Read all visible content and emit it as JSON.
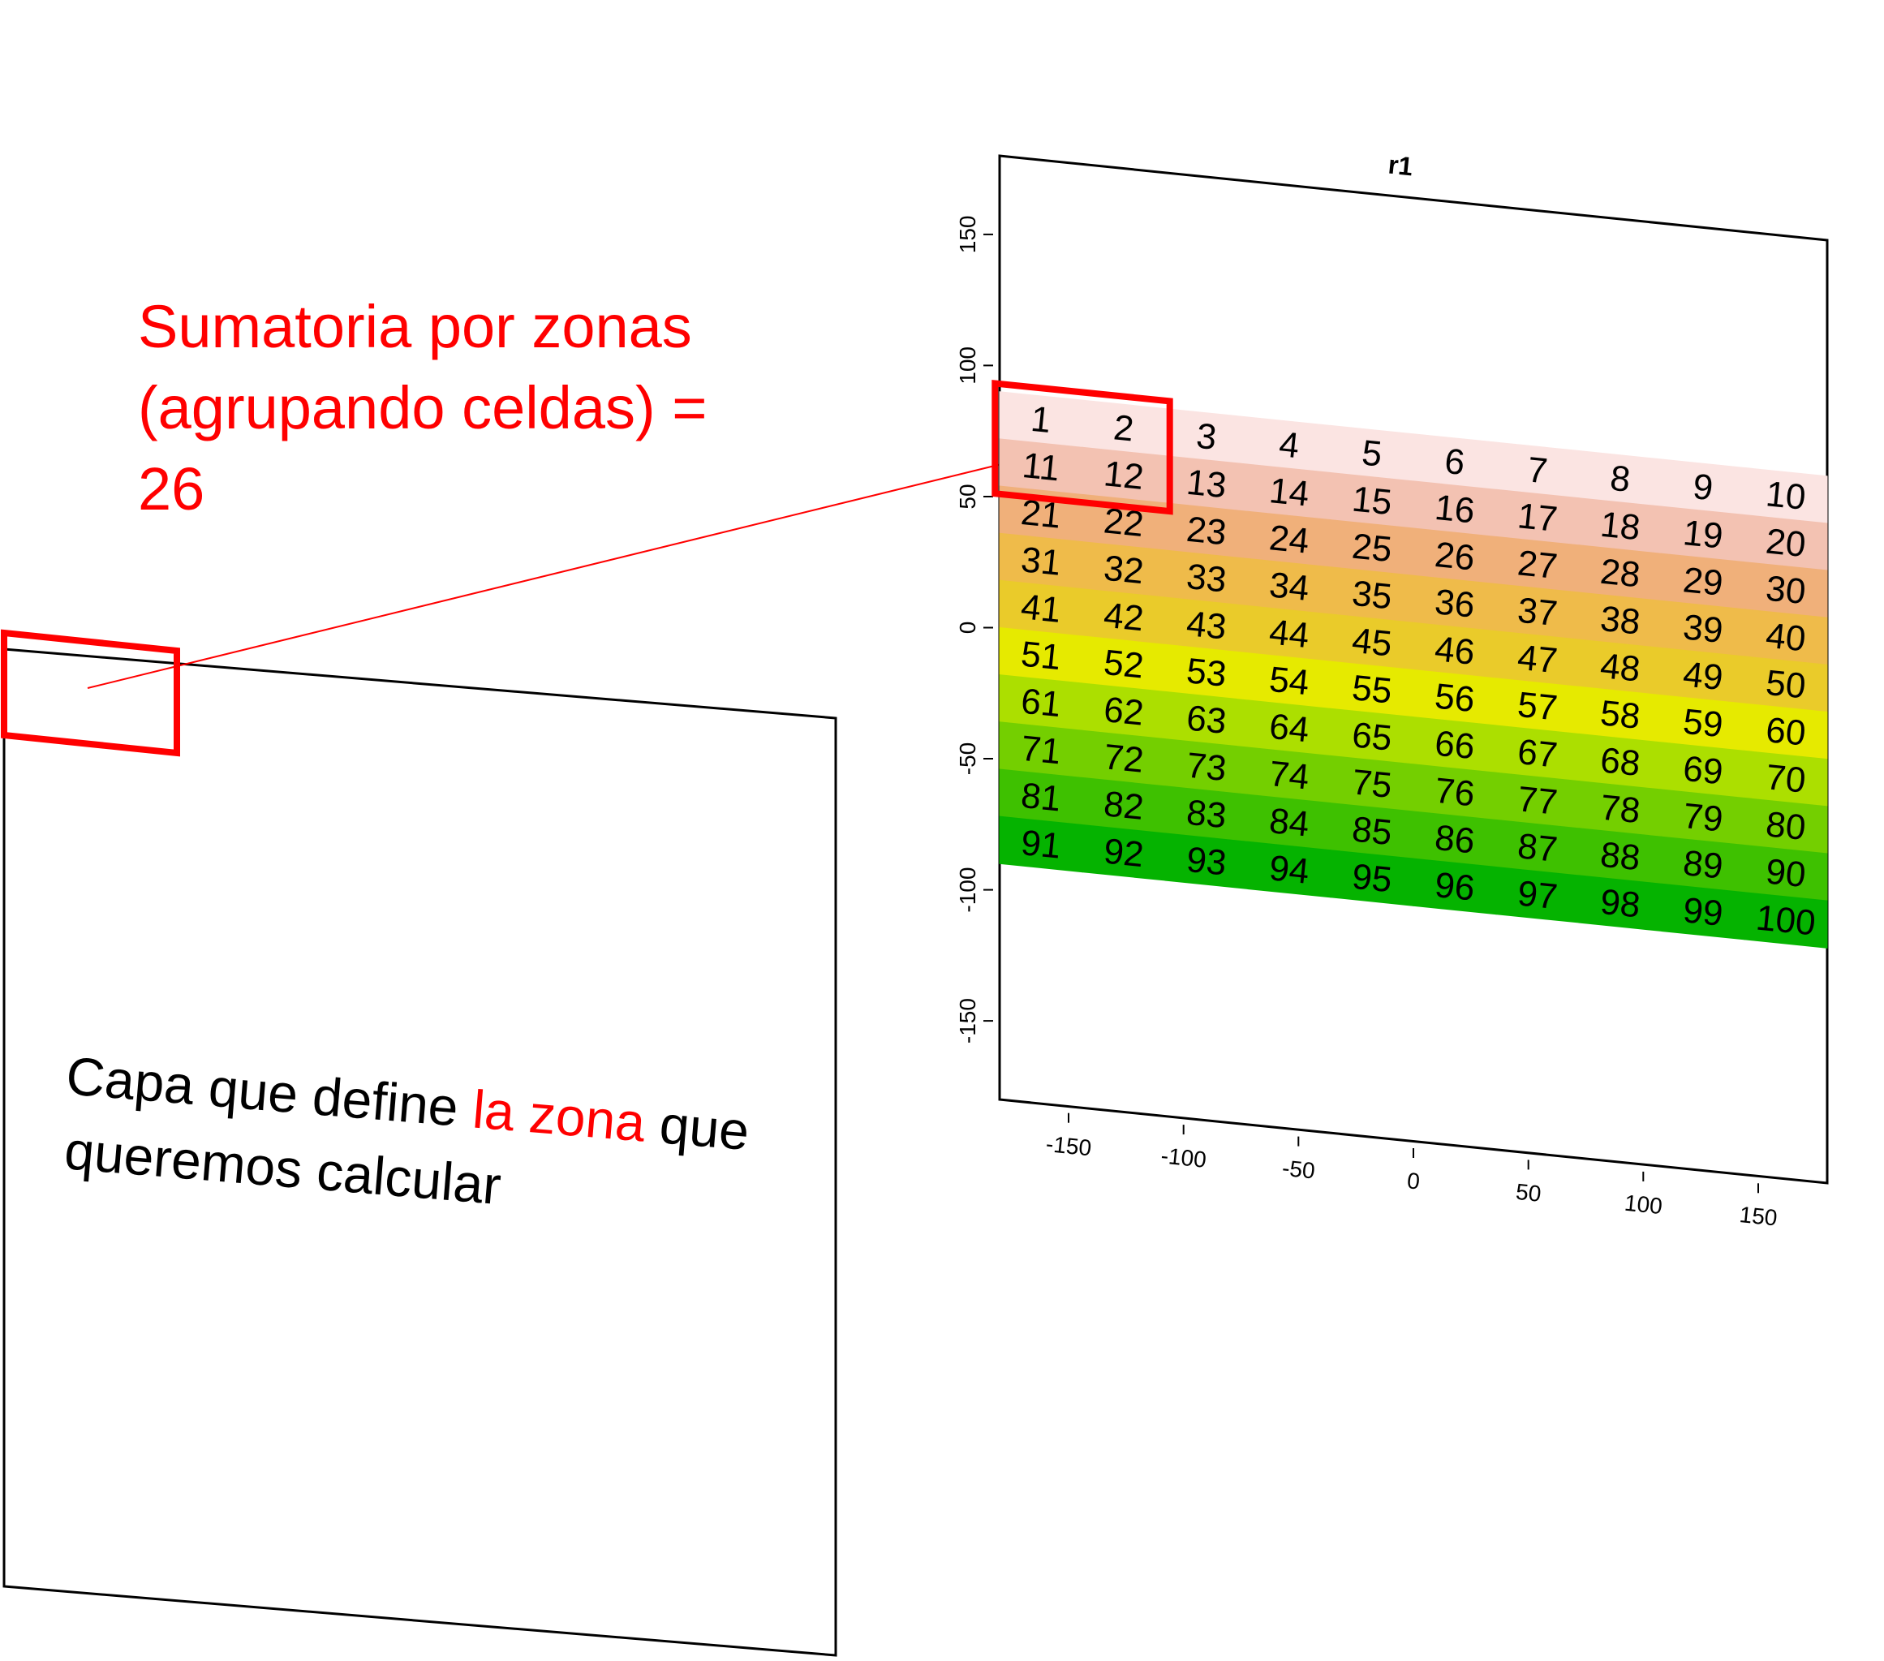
{
  "annotation": {
    "lines": [
      "Sumatoria por zonas",
      "(agrupando celdas) =",
      "26"
    ]
  },
  "zone_layer": {
    "caption_part1": "Capa que define ",
    "caption_highlight": "la zona",
    "caption_part2": " que",
    "caption_line2": "queremos calcular"
  },
  "colors": {
    "highlight": "#ff0000",
    "row_colors": [
      "#fbe4e2",
      "#f3c2b2",
      "#f0b07a",
      "#efbb4a",
      "#eacb2a",
      "#e6ea00",
      "#acdf00",
      "#74cf00",
      "#3ec100",
      "#05b300"
    ]
  },
  "chart_data": {
    "type": "heatmap",
    "title": "r1",
    "xlabel": "",
    "ylabel": "",
    "x_ticks": [
      "-150",
      "-100",
      "-50",
      "0",
      "50",
      "100",
      "150"
    ],
    "y_ticks": [
      "150",
      "100",
      "50",
      "0",
      "-50",
      "-100",
      "-150"
    ],
    "xlim": [
      -180,
      180
    ],
    "ylim": [
      -180,
      180
    ],
    "extent": {
      "xmin": -180,
      "xmax": 180,
      "ymin": -90,
      "ymax": 90
    },
    "nrows": 10,
    "ncols": 10,
    "values": [
      [
        1,
        2,
        3,
        4,
        5,
        6,
        7,
        8,
        9,
        10
      ],
      [
        11,
        12,
        13,
        14,
        15,
        16,
        17,
        18,
        19,
        20
      ],
      [
        21,
        22,
        23,
        24,
        25,
        26,
        27,
        28,
        29,
        30
      ],
      [
        31,
        32,
        33,
        34,
        35,
        36,
        37,
        38,
        39,
        40
      ],
      [
        41,
        42,
        43,
        44,
        45,
        46,
        47,
        48,
        49,
        50
      ],
      [
        51,
        52,
        53,
        54,
        55,
        56,
        57,
        58,
        59,
        60
      ],
      [
        61,
        62,
        63,
        64,
        65,
        66,
        67,
        68,
        69,
        70
      ],
      [
        71,
        72,
        73,
        74,
        75,
        76,
        77,
        78,
        79,
        80
      ],
      [
        81,
        82,
        83,
        84,
        85,
        86,
        87,
        88,
        89,
        90
      ],
      [
        91,
        92,
        93,
        94,
        95,
        96,
        97,
        98,
        99,
        100
      ]
    ],
    "color_scale": "terrain (pink to green)",
    "highlighted_zone_cells": [
      1,
      2,
      11,
      12
    ],
    "zone_sum": 26
  }
}
